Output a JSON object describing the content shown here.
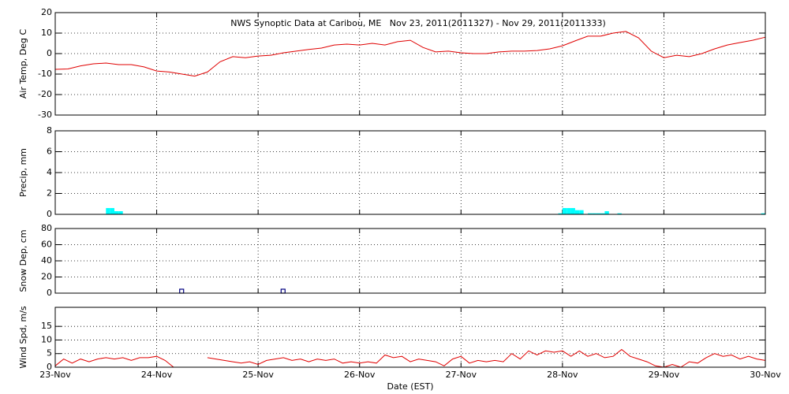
{
  "chart_data": [
    {
      "type": "line",
      "title": "NWS Synoptic Data at Caribou, ME   Nov 23, 2011(2011327) - Nov 29, 2011(2011333)",
      "ylabel": "Air Temp, Deg C",
      "ylim": [
        -30,
        20
      ],
      "yticks": [
        -30,
        -20,
        -10,
        0,
        10,
        20
      ],
      "x": [
        0,
        3,
        6,
        9,
        12,
        15,
        18,
        21,
        24,
        27,
        30,
        33,
        36,
        39,
        42,
        45,
        48,
        51,
        54,
        57,
        60,
        63,
        66,
        69,
        72,
        75,
        78,
        81,
        84,
        87,
        90,
        93,
        96,
        99,
        102,
        105,
        108,
        111,
        114,
        117,
        120,
        123,
        126,
        129,
        132,
        135,
        138,
        141,
        144,
        147,
        150,
        153,
        156,
        159,
        162,
        165,
        168
      ],
      "values": [
        -7.7,
        -7.5,
        -6,
        -5,
        -4.6,
        -5.4,
        -5.4,
        -6.5,
        -8.5,
        -9,
        -10,
        -11,
        -9,
        -4,
        -1.5,
        -2,
        -1.2,
        -0.8,
        0.4,
        1.2,
        2,
        2.7,
        4.2,
        4.6,
        4.2,
        5,
        4.2,
        5.8,
        6.5,
        3,
        0.8,
        1.2,
        0.4,
        0,
        0,
        0.8,
        1.2,
        1.2,
        1.5,
        2.3,
        3.8,
        6.2,
        8.5,
        8.5,
        10,
        10.8,
        7.7,
        1.2,
        -2,
        -0.8,
        -1.5,
        0,
        2.3,
        4.2,
        5.4,
        6.5,
        8
      ],
      "color": "#e00000",
      "grid": true
    },
    {
      "type": "bar",
      "ylabel": "Precip, mm",
      "ylim": [
        0,
        8
      ],
      "yticks": [
        0,
        2,
        4,
        6,
        8
      ],
      "x": [
        12,
        13,
        14,
        15,
        119,
        120,
        121,
        122,
        123,
        124,
        126,
        127,
        128,
        129,
        130,
        133,
        167
      ],
      "values": [
        0.6,
        0.6,
        0.3,
        0.3,
        0.1,
        0.6,
        0.6,
        0.6,
        0.4,
        0.4,
        0.1,
        0.1,
        0.1,
        0.1,
        0.3,
        0.1,
        0.1
      ],
      "color": "#00ffff",
      "grid": true
    },
    {
      "type": "scatter",
      "ylabel": "Snow Dep, cm",
      "ylim": [
        0,
        80
      ],
      "yticks": [
        0,
        20,
        40,
        60,
        80
      ],
      "x": [
        30,
        54
      ],
      "values": [
        0,
        0
      ],
      "color": "#000080",
      "grid": true
    },
    {
      "type": "line",
      "ylabel": "Wind Spd, m/s",
      "xlabel": "Date (EST)",
      "ylim": [
        0,
        22
      ],
      "yticks": [
        0,
        5,
        10,
        15
      ],
      "x": [
        0,
        2,
        4,
        6,
        8,
        10,
        12,
        14,
        16,
        18,
        20,
        22,
        24,
        26,
        28,
        30,
        32,
        34,
        36,
        38,
        40,
        42,
        44,
        46,
        48,
        50,
        52,
        54,
        56,
        58,
        60,
        62,
        64,
        66,
        68,
        70,
        72,
        74,
        76,
        78,
        80,
        82,
        84,
        86,
        88,
        90,
        92,
        94,
        96,
        98,
        100,
        102,
        104,
        106,
        108,
        110,
        112,
        114,
        116,
        118,
        120,
        122,
        124,
        126,
        128,
        130,
        132,
        134,
        136,
        138,
        140,
        142,
        144,
        146,
        148,
        150,
        152,
        154,
        156,
        158,
        160,
        162,
        164,
        166,
        168
      ],
      "values": [
        0.5,
        3,
        1.5,
        3,
        2,
        3,
        3.5,
        3,
        3.5,
        2.5,
        3.5,
        3.5,
        4,
        2.5,
        0,
        null,
        null,
        null,
        3.5,
        3,
        2.5,
        2,
        1.5,
        2,
        1,
        2.5,
        3,
        3.5,
        2.5,
        3,
        2,
        3,
        2.5,
        3,
        1.5,
        2,
        1.5,
        2,
        1.5,
        4.5,
        3.5,
        4,
        2,
        3,
        2.5,
        2,
        0.5,
        3,
        4,
        1.5,
        2.5,
        2,
        2.5,
        2,
        5,
        3,
        6,
        4.5,
        6,
        5.5,
        6,
        4,
        6,
        4,
        5,
        3.5,
        4,
        6.5,
        4,
        3,
        2,
        0.5,
        0,
        1,
        0,
        2,
        1.5,
        3.5,
        5,
        4,
        4.5,
        3,
        4,
        3,
        2.5
      ],
      "color": "#e00000",
      "grid": true,
      "xlim": [
        0,
        168
      ],
      "xticks": [
        {
          "value": 0,
          "label": "23-Nov"
        },
        {
          "value": 24,
          "label": "24-Nov"
        },
        {
          "value": 48,
          "label": "25-Nov"
        },
        {
          "value": 72,
          "label": "26-Nov"
        },
        {
          "value": 96,
          "label": "27-Nov"
        },
        {
          "value": 120,
          "label": "28-Nov"
        },
        {
          "value": 144,
          "label": "29-Nov"
        },
        {
          "value": 168,
          "label": "30-Nov"
        }
      ]
    }
  ]
}
